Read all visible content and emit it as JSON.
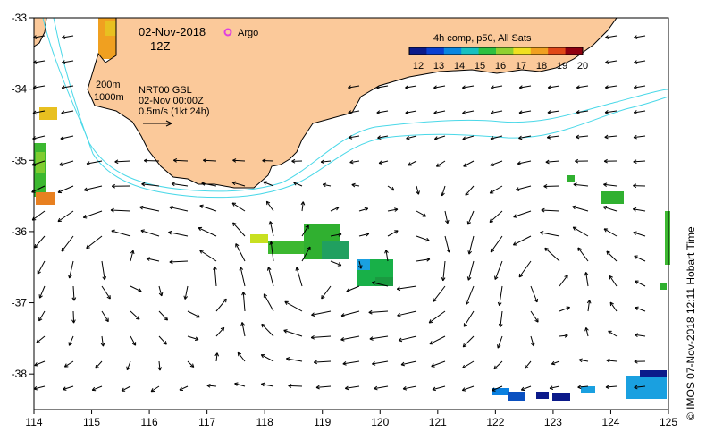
{
  "map": {
    "date": "02-Nov-2018",
    "hour": "12Z",
    "argo_label": "Argo",
    "contours": [
      "200m",
      "1000m"
    ],
    "product": "NRT00 GSL",
    "product_time": "02-Nov 00:00Z",
    "scale_label": "0.5m/s (1kt 24h)",
    "credit": "© IMOS 07-Nov-2018 12:11 Hobart Time",
    "x_ticks": [
      "114",
      "115",
      "116",
      "117",
      "118",
      "119",
      "120",
      "121",
      "122",
      "123",
      "124",
      "125"
    ],
    "y_ticks": [
      "-33",
      "-34",
      "-35",
      "-36",
      "-37",
      "-38"
    ],
    "x_range": [
      114,
      125
    ],
    "y_range": [
      -38.5,
      -33
    ],
    "colors": {
      "land": "#fbc99a",
      "contour": "#4ad8e8",
      "frame": "#000000",
      "argo": "#e040e0"
    }
  },
  "colorbar": {
    "title": "4h comp, p50, All Sats",
    "ticks": [
      "12",
      "13",
      "14",
      "15",
      "16",
      "17",
      "18",
      "19",
      "20"
    ],
    "range": [
      12,
      20
    ],
    "unit_values": [
      12,
      13,
      14,
      15,
      16,
      17,
      18,
      19,
      20
    ]
  }
}
